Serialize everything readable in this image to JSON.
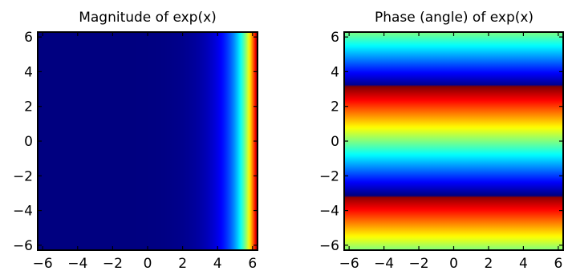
{
  "chart_data": [
    {
      "type": "heatmap",
      "title": "Magnitude of exp(x)",
      "xlabel": "",
      "ylabel": "",
      "xlim": [
        -6.283,
        6.283
      ],
      "ylim": [
        -6.283,
        6.283
      ],
      "xticks": [
        -6,
        -4,
        -2,
        0,
        2,
        4,
        6
      ],
      "yticks": [
        -6,
        -4,
        -2,
        0,
        2,
        4,
        6
      ],
      "tick_labels_x": [
        "−6",
        "−4",
        "−2",
        "0",
        "2",
        "4",
        "6"
      ],
      "tick_labels_y": [
        "−6",
        "−4",
        "−2",
        "0",
        "2",
        "4",
        "6"
      ],
      "function": "abs(exp(x + i*y))",
      "colormap": "jet",
      "grid": false
    },
    {
      "type": "heatmap",
      "title": "Phase (angle) of exp(x)",
      "xlabel": "",
      "ylabel": "",
      "xlim": [
        -6.283,
        6.283
      ],
      "ylim": [
        -6.283,
        6.283
      ],
      "xticks": [
        -6,
        -4,
        -2,
        0,
        2,
        4,
        6
      ],
      "yticks": [
        -6,
        -4,
        -2,
        0,
        2,
        4,
        6
      ],
      "tick_labels_x": [
        "−6",
        "−4",
        "−2",
        "0",
        "2",
        "4",
        "6"
      ],
      "tick_labels_y": [
        "−6",
        "−4",
        "−2",
        "0",
        "2",
        "4",
        "6"
      ],
      "function": "angle(exp(x + i*y))",
      "colormap": "jet",
      "grid": false
    }
  ]
}
